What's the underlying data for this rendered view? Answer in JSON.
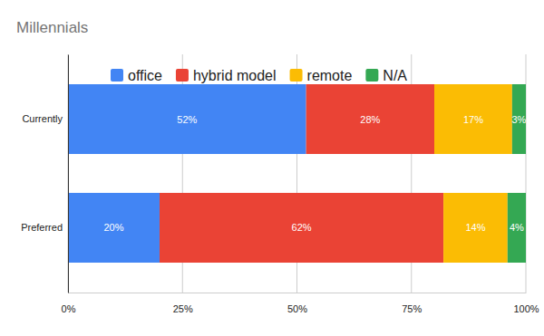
{
  "chart_data": {
    "type": "bar",
    "title": "Millennials",
    "orientation": "horizontal",
    "stacked": true,
    "data_labels": true,
    "grid": true,
    "legend": "top",
    "categories": [
      "Currently",
      "Preferred"
    ],
    "series": [
      {
        "name": "office",
        "color": "#4285f4",
        "values": [
          52,
          20
        ],
        "value_labels": [
          "52%",
          "20%"
        ]
      },
      {
        "name": "hybrid model",
        "color": "#ea4335",
        "values": [
          28,
          62
        ],
        "value_labels": [
          "28%",
          "62%"
        ]
      },
      {
        "name": "remote",
        "color": "#fbbc04",
        "values": [
          17,
          14
        ],
        "value_labels": [
          "17%",
          "14%"
        ]
      },
      {
        "name": "N/A",
        "color": "#34a853",
        "values": [
          3,
          4
        ],
        "value_labels": [
          "3%",
          "4%"
        ]
      }
    ],
    "xlim": [
      0,
      100
    ],
    "xticks": [
      {
        "value": 0,
        "label": "0%"
      },
      {
        "value": 25,
        "label": "25%"
      },
      {
        "value": 50,
        "label": "50%"
      },
      {
        "value": 75,
        "label": "75%"
      },
      {
        "value": 100,
        "label": "100%"
      }
    ]
  }
}
